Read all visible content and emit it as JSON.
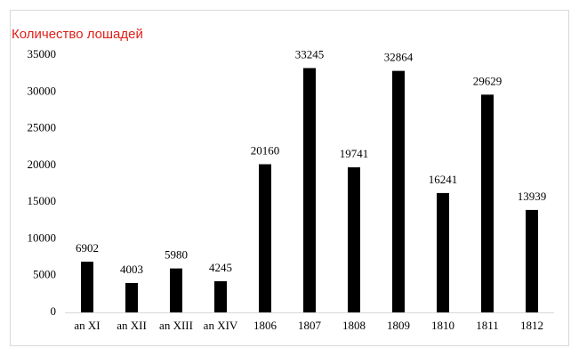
{
  "chart_data": {
    "type": "bar",
    "title": "Количество лошадей",
    "categories": [
      "an XI",
      "an XII",
      "an XIII",
      "an XIV",
      "1806",
      "1807",
      "1808",
      "1809",
      "1810",
      "1811",
      "1812"
    ],
    "values": [
      6902,
      4003,
      5980,
      4245,
      20160,
      33245,
      19741,
      32864,
      16241,
      29629,
      13939
    ],
    "color": "#000000",
    "ylim": [
      0,
      35000
    ],
    "yticks": [
      0,
      5000,
      10000,
      15000,
      20000,
      25000,
      30000,
      35000
    ],
    "grid": false
  }
}
